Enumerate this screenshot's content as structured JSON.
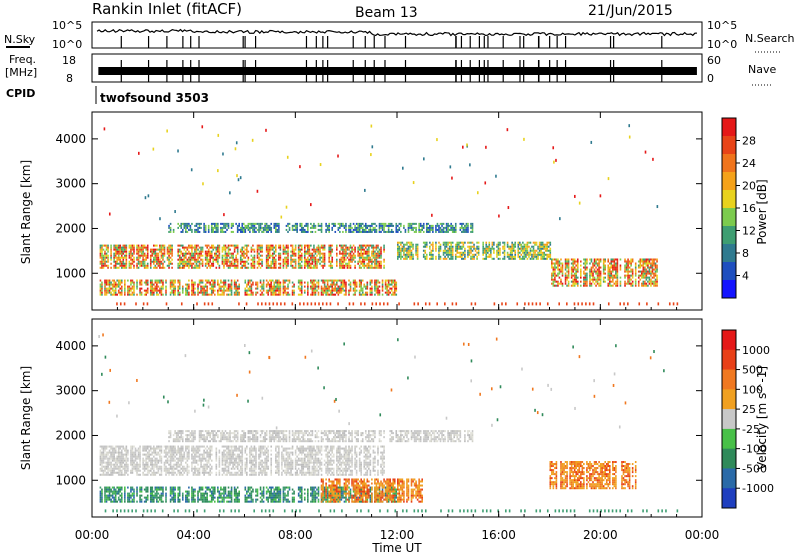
{
  "header": {
    "title": "Rankin Inlet (fitACF)",
    "beam": "Beam 13",
    "date": "21/Jun/2015"
  },
  "top_panels": {
    "nsky_label": "N.Sky",
    "nsearch_label": "N.Search",
    "nsky_ticks": [
      "10^5",
      "10^0"
    ],
    "nsearch_ticks": [
      "10^5",
      "10^0"
    ],
    "freq_label": "Freq.",
    "freq_unit": "[MHz]",
    "freq_ticks": [
      "18",
      "8"
    ],
    "nave_label": "Nave",
    "nave_ticks": [
      "60",
      "0"
    ],
    "cpid_label": "CPID",
    "cpid_name": "twofsound 3503"
  },
  "chart_data": [
    {
      "type": "heatmap",
      "name": "power",
      "ylabel": "Slant Range [km]",
      "xlabel": "",
      "x_ticks": [
        "00:00",
        "04:00",
        "08:00",
        "12:00",
        "16:00",
        "20:00",
        "00:00"
      ],
      "x_range_hours": [
        0,
        24
      ],
      "y_ticks": [
        1000,
        2000,
        3000,
        4000
      ],
      "ylim": [
        180,
        4600
      ],
      "colorbar": {
        "label": "Power [dB]",
        "ticks": [
          4,
          8,
          12,
          16,
          20,
          24,
          28
        ],
        "colors": [
          "#1414ff",
          "#1f4fbf",
          "#2f7a8f",
          "#3e9e72",
          "#7ccb4e",
          "#e8d21e",
          "#f5a21a",
          "#f0741c",
          "#e84418",
          "#e51818"
        ]
      },
      "regions": [
        {
          "t0": 0.3,
          "t1": 12.0,
          "r0": 500,
          "r1": 850,
          "level": "high"
        },
        {
          "t0": 0.3,
          "t1": 11.5,
          "r0": 1100,
          "r1": 1600,
          "level": "high"
        },
        {
          "t0": 3.0,
          "t1": 15.0,
          "r0": 1900,
          "r1": 2100,
          "level": "low"
        },
        {
          "t0": 12.0,
          "t1": 18.0,
          "r0": 1300,
          "r1": 1700,
          "level": "mid"
        },
        {
          "t0": 18.0,
          "t1": 22.2,
          "r0": 700,
          "r1": 1300,
          "level": "high"
        }
      ]
    },
    {
      "type": "heatmap",
      "name": "velocity",
      "ylabel": "Slant Range [km]",
      "xlabel": "Time UT",
      "x_ticks": [
        "00:00",
        "04:00",
        "08:00",
        "12:00",
        "16:00",
        "20:00",
        "00:00"
      ],
      "x_range_hours": [
        0,
        24
      ],
      "y_ticks": [
        1000,
        2000,
        3000,
        4000
      ],
      "ylim": [
        180,
        4600
      ],
      "colorbar": {
        "label": "Velocity [m s^-1]",
        "ticks": [
          1000,
          500,
          100,
          25,
          -25,
          -100,
          -500,
          -1000
        ],
        "colors": [
          "#1f3fbf",
          "#2a6aa8",
          "#2f8a5a",
          "#48c048",
          "#c8c8c8",
          "#f0a020",
          "#f07820",
          "#e84018",
          "#e51818"
        ]
      },
      "regions": [
        {
          "t0": 0.3,
          "t1": 12.0,
          "r0": 500,
          "r1": 850,
          "level": "green"
        },
        {
          "t0": 0.3,
          "t1": 11.5,
          "r0": 1100,
          "r1": 1750,
          "level": "gray"
        },
        {
          "t0": 3.0,
          "t1": 15.0,
          "r0": 1850,
          "r1": 2100,
          "level": "gray"
        },
        {
          "t0": 9.0,
          "t1": 13.0,
          "r0": 500,
          "r1": 1000,
          "level": "orange"
        },
        {
          "t0": 18.0,
          "t1": 21.5,
          "r0": 800,
          "r1": 1400,
          "level": "orange"
        }
      ]
    }
  ],
  "colors": {
    "axis": "#000000",
    "background": "#ffffff"
  }
}
